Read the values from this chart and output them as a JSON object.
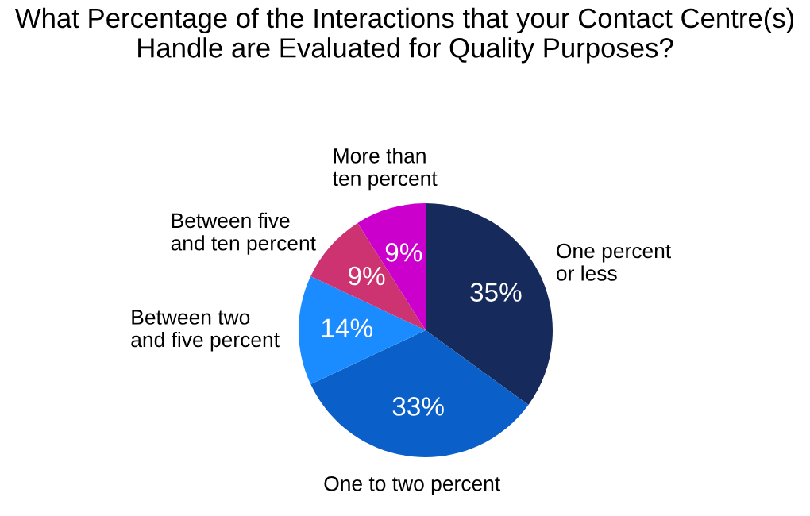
{
  "chart_data": {
    "type": "pie",
    "title": "What Percentage of the Interactions that your Contact Centre(s) Handle are Evaluated for Quality Purposes?",
    "categories": [
      "One percent\nor less",
      "One to two percent",
      "Between two\nand five percent",
      "Between five\nand ten percent",
      "More than\nten percent"
    ],
    "values": [
      35,
      33,
      14,
      9,
      9
    ],
    "value_labels": [
      "35%",
      "33%",
      "14%",
      "9%",
      "9%"
    ],
    "colors": [
      "#172a5c",
      "#0a5fc8",
      "#1a8cff",
      "#cc3370",
      "#cc00cc"
    ],
    "legend": false
  }
}
